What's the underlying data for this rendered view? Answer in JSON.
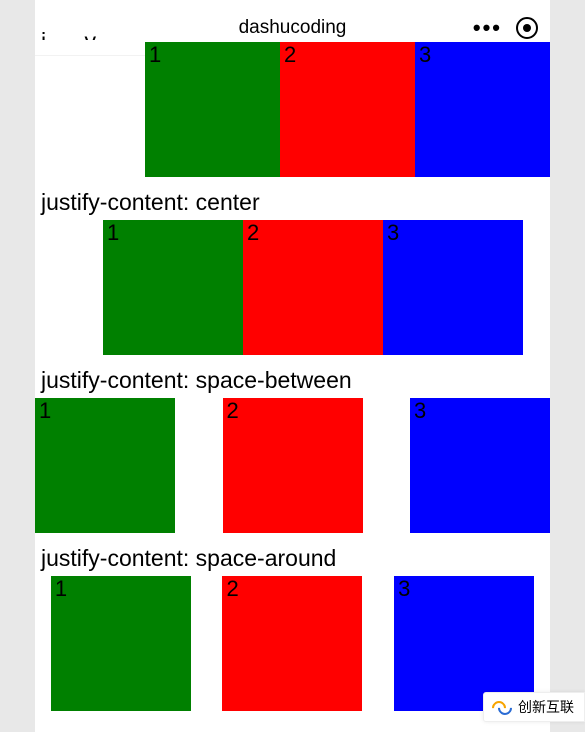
{
  "header": {
    "title": "dashucoding"
  },
  "sections": [
    {
      "mode": "offset",
      "label": "",
      "boxes": [
        "1",
        "2",
        "3"
      ]
    },
    {
      "mode": "center",
      "label": "justify-content: center",
      "boxes": [
        "1",
        "2",
        "3"
      ]
    },
    {
      "mode": "space-between",
      "label": "justify-content: space-between",
      "boxes": [
        "1",
        "2",
        "3"
      ]
    },
    {
      "mode": "space-around",
      "label": "justify-content: space-around",
      "boxes": [
        "1",
        "2",
        "3"
      ]
    }
  ],
  "colors": {
    "green": "#008000",
    "red": "#ff0000",
    "blue": "#0000ff"
  },
  "watermark": {
    "text": "创新互联"
  }
}
